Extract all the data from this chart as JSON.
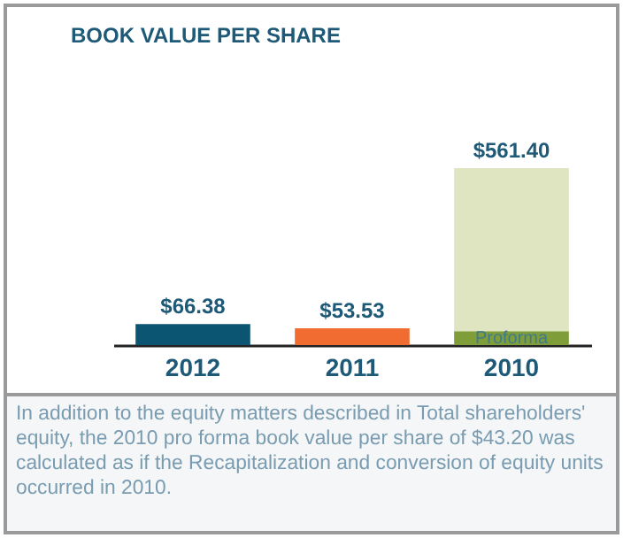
{
  "chart_data": {
    "type": "bar",
    "title": "BOOK VALUE PER SHARE",
    "categories": [
      "2012",
      "2011",
      "2010"
    ],
    "series": [
      {
        "colors": [
          "#0b5572",
          "#f06c30",
          "#dfe5c1"
        ],
        "values": [
          66.38,
          53.53,
          561.4
        ],
        "value_labels": [
          "$66.38",
          "$53.53",
          "$561.40"
        ]
      },
      {
        "name": "Proforma",
        "color": "#7f9e3a",
        "values": [
          null,
          null,
          43.2
        ]
      }
    ],
    "annotations": [
      "In addition to the equity matters described in Total shareholders' equity, the 2010 pro forma book value per share of $43.20 was calculated as if the Recapitalization and conversion of equity units occurred in 2010."
    ],
    "tick_labels": "x"
  }
}
